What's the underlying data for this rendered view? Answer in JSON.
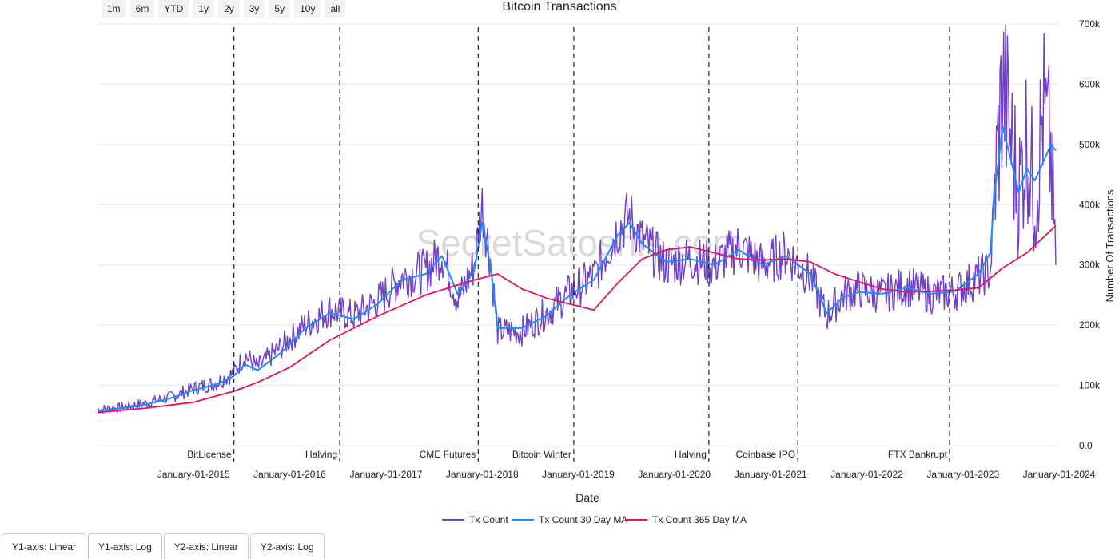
{
  "range_buttons": [
    "1m",
    "6m",
    "YTD",
    "1y",
    "2y",
    "3y",
    "5y",
    "10y",
    "all"
  ],
  "axis_buttons": [
    "Y1-axis: Linear",
    "Y1-axis: Log",
    "Y2-axis: Linear",
    "Y2-axis: Log"
  ],
  "watermark": "SecretSatoshis.com",
  "colors": {
    "tx": "#7040c8",
    "ma30": "#1a8cff",
    "ma365": "#e8105a",
    "grid": "#e6e6e6",
    "event": "#222222"
  },
  "chart_data": {
    "type": "line",
    "title": "Bitcoin Transactions",
    "xlabel": "Date",
    "ylabel": "Number Of Transactions",
    "x_range": [
      "2014-01-01",
      "2024-01-01"
    ],
    "ylim": [
      0,
      700000
    ],
    "y_ticks": [
      0,
      100000,
      200000,
      300000,
      400000,
      500000,
      600000,
      700000
    ],
    "y_tick_labels": [
      "0.0",
      "100k",
      "200k",
      "300k",
      "400k",
      "500k",
      "600k",
      "700k"
    ],
    "x_ticks": [
      "2015-01-01",
      "2016-01-01",
      "2017-01-01",
      "2018-01-01",
      "2019-01-01",
      "2020-01-01",
      "2021-01-01",
      "2022-01-01",
      "2023-01-01",
      "2024-01-01"
    ],
    "x_tick_labels": [
      "January-01-2015",
      "January-01-2016",
      "January-01-2017",
      "January-01-2018",
      "January-01-2019",
      "January-01-2020",
      "January-01-2021",
      "January-01-2022",
      "January-01-2023",
      "January-01-2024"
    ],
    "grid": true,
    "legend": "bottom-center",
    "events": [
      {
        "date": "2015-06-03",
        "label": "BitLicense"
      },
      {
        "date": "2016-07-09",
        "label": "Halving"
      },
      {
        "date": "2017-12-17",
        "label": "CME Futures"
      },
      {
        "date": "2018-12-15",
        "label": "Bitcoin Winter"
      },
      {
        "date": "2020-05-11",
        "label": "Halving"
      },
      {
        "date": "2021-04-14",
        "label": "Coinbase IPO"
      },
      {
        "date": "2022-11-11",
        "label": "FTX Bankrupt"
      }
    ],
    "series": [
      {
        "name": "Tx Count",
        "x": [
          "2014-01-01",
          "2014-04-01",
          "2014-07-01",
          "2014-10-01",
          "2015-01-01",
          "2015-04-01",
          "2015-06-01",
          "2015-07-15",
          "2015-09-01",
          "2015-12-01",
          "2016-03-01",
          "2016-06-01",
          "2016-09-01",
          "2016-12-01",
          "2017-03-01",
          "2017-06-01",
          "2017-08-01",
          "2017-10-01",
          "2017-12-01",
          "2018-01-01",
          "2018-02-01",
          "2018-03-01",
          "2018-06-01",
          "2018-09-01",
          "2018-12-01",
          "2019-03-01",
          "2019-06-01",
          "2019-07-15",
          "2019-09-01",
          "2019-12-01",
          "2020-03-01",
          "2020-06-01",
          "2020-09-01",
          "2020-12-01",
          "2021-03-01",
          "2021-06-01",
          "2021-08-01",
          "2021-10-01",
          "2021-12-01",
          "2022-03-01",
          "2022-06-01",
          "2022-09-01",
          "2022-12-01",
          "2023-03-01",
          "2023-04-15",
          "2023-05-01",
          "2023-06-01",
          "2023-08-01",
          "2023-09-01",
          "2023-10-01",
          "2023-11-01",
          "2023-12-01",
          "2023-12-20"
        ],
        "values": [
          60000,
          63000,
          70000,
          80000,
          95000,
          105000,
          120000,
          150000,
          130000,
          165000,
          200000,
          225000,
          215000,
          240000,
          280000,
          290000,
          320000,
          240000,
          300000,
          400000,
          310000,
          190000,
          190000,
          220000,
          255000,
          280000,
          360000,
          380000,
          340000,
          300000,
          310000,
          300000,
          330000,
          300000,
          320000,
          280000,
          215000,
          250000,
          260000,
          250000,
          265000,
          250000,
          255000,
          280000,
          290000,
          420000,
          600000,
          420000,
          520000,
          400000,
          560000,
          480000,
          300000
        ]
      },
      {
        "name": "Tx Count 30 Day MA",
        "x": [
          "2014-01-01",
          "2014-04-01",
          "2014-07-01",
          "2014-10-01",
          "2015-01-01",
          "2015-04-01",
          "2015-06-01",
          "2015-07-15",
          "2015-09-01",
          "2015-12-01",
          "2016-03-01",
          "2016-06-01",
          "2016-09-01",
          "2016-12-01",
          "2017-03-01",
          "2017-06-01",
          "2017-08-01",
          "2017-10-01",
          "2017-12-01",
          "2018-01-01",
          "2018-02-01",
          "2018-03-01",
          "2018-06-01",
          "2018-09-01",
          "2018-12-01",
          "2019-03-01",
          "2019-06-01",
          "2019-07-15",
          "2019-09-01",
          "2019-12-01",
          "2020-03-01",
          "2020-06-01",
          "2020-09-01",
          "2020-12-01",
          "2021-03-01",
          "2021-06-01",
          "2021-08-01",
          "2021-10-01",
          "2021-12-01",
          "2022-03-01",
          "2022-06-01",
          "2022-09-01",
          "2022-12-01",
          "2023-03-01",
          "2023-04-15",
          "2023-05-01",
          "2023-06-01",
          "2023-08-01",
          "2023-09-01",
          "2023-10-01",
          "2023-11-01",
          "2023-12-01",
          "2023-12-20"
        ],
        "values": [
          58000,
          62000,
          68000,
          78000,
          92000,
          102000,
          115000,
          135000,
          125000,
          155000,
          195000,
          220000,
          210000,
          235000,
          275000,
          285000,
          315000,
          250000,
          290000,
          370000,
          300000,
          195000,
          195000,
          215000,
          250000,
          275000,
          350000,
          370000,
          335000,
          305000,
          310000,
          300000,
          325000,
          300000,
          315000,
          285000,
          220000,
          245000,
          255000,
          252000,
          262000,
          252000,
          256000,
          285000,
          320000,
          420000,
          530000,
          420000,
          460000,
          440000,
          470000,
          500000,
          490000
        ]
      },
      {
        "name": "Tx Count 365 Day MA",
        "x": [
          "2014-01-01",
          "2014-07-01",
          "2015-01-01",
          "2015-06-01",
          "2015-09-01",
          "2016-01-01",
          "2016-06-01",
          "2016-12-01",
          "2017-06-01",
          "2017-12-01",
          "2018-03-01",
          "2018-06-01",
          "2018-09-01",
          "2018-12-01",
          "2019-03-01",
          "2019-06-01",
          "2019-09-01",
          "2019-12-01",
          "2020-03-01",
          "2020-06-01",
          "2020-09-01",
          "2020-12-01",
          "2021-03-01",
          "2021-06-01",
          "2021-09-01",
          "2021-12-01",
          "2022-03-01",
          "2022-06-01",
          "2022-09-01",
          "2022-12-01",
          "2023-03-01",
          "2023-06-01",
          "2023-09-01",
          "2023-12-20"
        ],
        "values": [
          55000,
          62000,
          72000,
          90000,
          105000,
          130000,
          175000,
          215000,
          250000,
          275000,
          285000,
          260000,
          245000,
          235000,
          225000,
          270000,
          310000,
          325000,
          330000,
          320000,
          310000,
          308000,
          310000,
          305000,
          285000,
          272000,
          260000,
          255000,
          256000,
          258000,
          262000,
          295000,
          320000,
          365000
        ]
      }
    ]
  }
}
